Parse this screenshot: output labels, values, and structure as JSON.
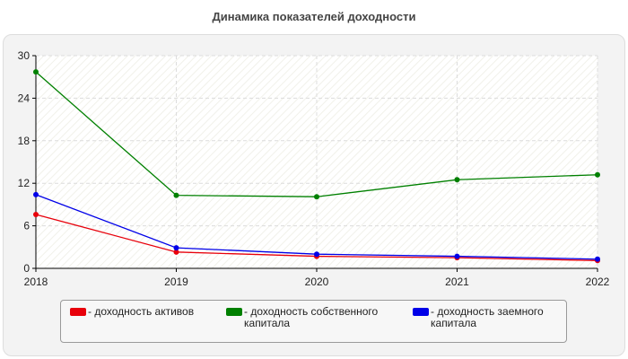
{
  "chart_data": {
    "type": "line",
    "title": "Динамика показателей доходности",
    "xlabel": "",
    "ylabel": "",
    "x": [
      "2018",
      "2019",
      "2020",
      "2021",
      "2022"
    ],
    "ylim": [
      0,
      30
    ],
    "yticks": [
      "0",
      "6",
      "12",
      "18",
      "24",
      "30"
    ],
    "grid": true,
    "legend_position": "bottom",
    "series": [
      {
        "name": "- доходность активов",
        "color": "#e8000b",
        "values": [
          7.6,
          2.3,
          1.7,
          1.5,
          1.1
        ]
      },
      {
        "name": "- доходность собственного капитала",
        "color": "#008000",
        "values": [
          27.7,
          10.3,
          10.1,
          12.5,
          13.2
        ]
      },
      {
        "name": "- доходность заемного капитала",
        "color": "#0000e8",
        "values": [
          10.4,
          2.9,
          2.0,
          1.7,
          1.3
        ]
      }
    ]
  }
}
